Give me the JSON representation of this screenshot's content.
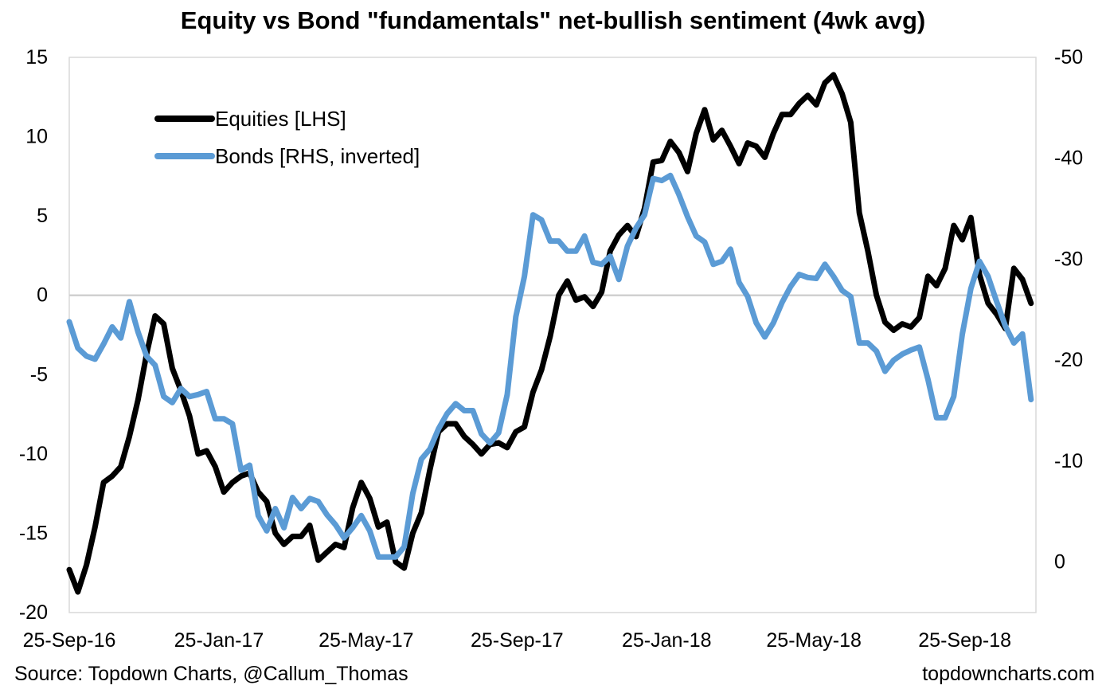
{
  "chart_data": {
    "type": "line",
    "title": "Equity vs Bond \"fundamentals\" net-bullish sentiment (4wk avg)",
    "x_tick_labels": [
      "25-Sep-16",
      "25-Jan-17",
      "25-May-17",
      "25-Sep-17",
      "25-Jan-18",
      "25-May-18",
      "25-Sep-18"
    ],
    "x_range": [
      "2016-09-25",
      "2018-11-22"
    ],
    "y_left": {
      "ylim": [
        -20,
        15
      ],
      "ticks": [
        15,
        10,
        5,
        0,
        -5,
        -10,
        -15,
        -20
      ]
    },
    "y_right": {
      "ylim": [
        5,
        -50
      ],
      "inverted": true,
      "ticks": [
        -50,
        -40,
        -30,
        -20,
        -10,
        0
      ]
    },
    "zero_line": 0,
    "legend_position": "top-left",
    "series": [
      {
        "name": "Equities [LHS]",
        "axis": "left",
        "color": "#000000",
        "points": [
          [
            "2016-09-25",
            -17.3
          ],
          [
            "2016-10-02",
            -18.7
          ],
          [
            "2016-10-09",
            -17.0
          ],
          [
            "2016-10-16",
            -14.6
          ],
          [
            "2016-10-23",
            -11.8
          ],
          [
            "2016-10-30",
            -11.4
          ],
          [
            "2016-11-06",
            -10.8
          ],
          [
            "2016-11-13",
            -8.9
          ],
          [
            "2016-11-20",
            -6.6
          ],
          [
            "2016-11-27",
            -3.7
          ],
          [
            "2016-12-04",
            -1.3
          ],
          [
            "2016-12-11",
            -1.8
          ],
          [
            "2016-12-18",
            -4.6
          ],
          [
            "2016-12-25",
            -6.0
          ],
          [
            "2017-01-01",
            -7.6
          ],
          [
            "2017-01-08",
            -10.0
          ],
          [
            "2017-01-15",
            -9.8
          ],
          [
            "2017-01-22",
            -10.8
          ],
          [
            "2017-01-29",
            -12.4
          ],
          [
            "2017-02-05",
            -11.8
          ],
          [
            "2017-02-12",
            -11.4
          ],
          [
            "2017-02-19",
            -11.2
          ],
          [
            "2017-02-26",
            -12.4
          ],
          [
            "2017-03-05",
            -13.0
          ],
          [
            "2017-03-12",
            -15.0
          ],
          [
            "2017-03-19",
            -15.7
          ],
          [
            "2017-03-26",
            -15.2
          ],
          [
            "2017-04-02",
            -15.2
          ],
          [
            "2017-04-09",
            -14.5
          ],
          [
            "2017-04-16",
            -16.7
          ],
          [
            "2017-04-23",
            -16.2
          ],
          [
            "2017-04-30",
            -15.7
          ],
          [
            "2017-05-07",
            -15.9
          ],
          [
            "2017-05-14",
            -13.4
          ],
          [
            "2017-05-21",
            -11.8
          ],
          [
            "2017-05-28",
            -12.8
          ],
          [
            "2017-06-04",
            -14.6
          ],
          [
            "2017-06-11",
            -14.3
          ],
          [
            "2017-06-18",
            -16.8
          ],
          [
            "2017-06-25",
            -17.2
          ],
          [
            "2017-07-02",
            -15.0
          ],
          [
            "2017-07-09",
            -13.7
          ],
          [
            "2017-07-16",
            -11.0
          ],
          [
            "2017-07-23",
            -8.6
          ],
          [
            "2017-07-30",
            -8.1
          ],
          [
            "2017-08-06",
            -8.1
          ],
          [
            "2017-08-13",
            -8.9
          ],
          [
            "2017-08-20",
            -9.4
          ],
          [
            "2017-08-27",
            -10.0
          ],
          [
            "2017-09-03",
            -9.4
          ],
          [
            "2017-09-10",
            -9.3
          ],
          [
            "2017-09-17",
            -9.6
          ],
          [
            "2017-09-24",
            -8.6
          ],
          [
            "2017-10-01",
            -8.3
          ],
          [
            "2017-10-08",
            -6.1
          ],
          [
            "2017-10-15",
            -4.7
          ],
          [
            "2017-10-22",
            -2.6
          ],
          [
            "2017-10-29",
            0.0
          ],
          [
            "2017-11-05",
            0.9
          ],
          [
            "2017-11-12",
            -0.3
          ],
          [
            "2017-11-19",
            -0.1
          ],
          [
            "2017-11-26",
            -0.7
          ],
          [
            "2017-12-03",
            0.2
          ],
          [
            "2017-12-10",
            2.8
          ],
          [
            "2017-12-17",
            3.8
          ],
          [
            "2017-12-24",
            4.4
          ],
          [
            "2017-12-31",
            3.7
          ],
          [
            "2018-01-07",
            5.5
          ],
          [
            "2018-01-14",
            8.4
          ],
          [
            "2018-01-21",
            8.5
          ],
          [
            "2018-01-28",
            9.7
          ],
          [
            "2018-02-04",
            9.0
          ],
          [
            "2018-02-11",
            7.8
          ],
          [
            "2018-02-18",
            10.2
          ],
          [
            "2018-02-25",
            11.7
          ],
          [
            "2018-03-04",
            9.8
          ],
          [
            "2018-03-11",
            10.4
          ],
          [
            "2018-03-18",
            9.4
          ],
          [
            "2018-03-25",
            8.3
          ],
          [
            "2018-04-01",
            9.6
          ],
          [
            "2018-04-08",
            9.4
          ],
          [
            "2018-04-15",
            8.7
          ],
          [
            "2018-04-22",
            10.2
          ],
          [
            "2018-04-29",
            11.4
          ],
          [
            "2018-05-06",
            11.4
          ],
          [
            "2018-05-13",
            12.1
          ],
          [
            "2018-05-20",
            12.6
          ],
          [
            "2018-05-27",
            12.0
          ],
          [
            "2018-06-03",
            13.4
          ],
          [
            "2018-06-10",
            13.9
          ],
          [
            "2018-06-17",
            12.7
          ],
          [
            "2018-06-24",
            10.9
          ],
          [
            "2018-07-01",
            5.2
          ],
          [
            "2018-07-08",
            2.8
          ],
          [
            "2018-07-15",
            0.0
          ],
          [
            "2018-07-22",
            -1.7
          ],
          [
            "2018-07-29",
            -2.2
          ],
          [
            "2018-08-05",
            -1.8
          ],
          [
            "2018-08-12",
            -2.0
          ],
          [
            "2018-08-19",
            -1.4
          ],
          [
            "2018-08-26",
            1.2
          ],
          [
            "2018-09-02",
            0.6
          ],
          [
            "2018-09-09",
            1.7
          ],
          [
            "2018-09-16",
            4.4
          ],
          [
            "2018-09-23",
            3.5
          ],
          [
            "2018-09-30",
            4.9
          ],
          [
            "2018-10-07",
            1.3
          ],
          [
            "2018-10-14",
            -0.5
          ],
          [
            "2018-10-21",
            -1.2
          ],
          [
            "2018-10-28",
            -2.1
          ],
          [
            "2018-11-04",
            1.7
          ],
          [
            "2018-11-11",
            1.0
          ],
          [
            "2018-11-18",
            -0.5
          ]
        ]
      },
      {
        "name": "Bonds [RHS, inverted]",
        "axis": "right",
        "color": "#5b9bd5",
        "points": [
          [
            "2016-09-25",
            -23.8
          ],
          [
            "2016-10-02",
            -21.2
          ],
          [
            "2016-10-09",
            -20.4
          ],
          [
            "2016-10-16",
            -20.1
          ],
          [
            "2016-10-23",
            -21.6
          ],
          [
            "2016-10-30",
            -23.3
          ],
          [
            "2016-11-06",
            -22.2
          ],
          [
            "2016-11-13",
            -25.8
          ],
          [
            "2016-11-20",
            -22.8
          ],
          [
            "2016-11-27",
            -20.4
          ],
          [
            "2016-12-04",
            -19.5
          ],
          [
            "2016-12-11",
            -16.4
          ],
          [
            "2016-12-18",
            -15.8
          ],
          [
            "2016-12-25",
            -17.2
          ],
          [
            "2017-01-01",
            -16.4
          ],
          [
            "2017-01-08",
            -16.6
          ],
          [
            "2017-01-15",
            -16.9
          ],
          [
            "2017-01-22",
            -14.2
          ],
          [
            "2017-01-29",
            -14.2
          ],
          [
            "2017-02-05",
            -13.7
          ],
          [
            "2017-02-12",
            -9.1
          ],
          [
            "2017-02-19",
            -9.6
          ],
          [
            "2017-02-26",
            -4.6
          ],
          [
            "2017-03-05",
            -3.1
          ],
          [
            "2017-03-12",
            -5.3
          ],
          [
            "2017-03-19",
            -3.4
          ],
          [
            "2017-03-26",
            -6.4
          ],
          [
            "2017-04-02",
            -5.3
          ],
          [
            "2017-04-09",
            -6.3
          ],
          [
            "2017-04-16",
            -6.0
          ],
          [
            "2017-04-23",
            -4.7
          ],
          [
            "2017-04-30",
            -3.7
          ],
          [
            "2017-05-07",
            -2.4
          ],
          [
            "2017-05-14",
            -3.4
          ],
          [
            "2017-05-21",
            -4.6
          ],
          [
            "2017-05-28",
            -3.1
          ],
          [
            "2017-06-04",
            -0.5
          ],
          [
            "2017-06-11",
            -0.5
          ],
          [
            "2017-06-18",
            -0.5
          ],
          [
            "2017-06-25",
            -1.5
          ],
          [
            "2017-07-02",
            -6.8
          ],
          [
            "2017-07-09",
            -10.2
          ],
          [
            "2017-07-16",
            -11.2
          ],
          [
            "2017-07-23",
            -13.2
          ],
          [
            "2017-07-30",
            -14.7
          ],
          [
            "2017-08-06",
            -15.7
          ],
          [
            "2017-08-13",
            -15.0
          ],
          [
            "2017-08-20",
            -15.0
          ],
          [
            "2017-08-27",
            -12.7
          ],
          [
            "2017-09-03",
            -11.8
          ],
          [
            "2017-09-10",
            -12.8
          ],
          [
            "2017-09-17",
            -16.6
          ],
          [
            "2017-09-24",
            -24.3
          ],
          [
            "2017-10-01",
            -28.3
          ],
          [
            "2017-10-08",
            -34.4
          ],
          [
            "2017-10-15",
            -33.9
          ],
          [
            "2017-10-22",
            -31.8
          ],
          [
            "2017-10-29",
            -31.8
          ],
          [
            "2017-11-05",
            -30.8
          ],
          [
            "2017-11-12",
            -30.8
          ],
          [
            "2017-11-19",
            -32.3
          ],
          [
            "2017-11-26",
            -29.7
          ],
          [
            "2017-12-03",
            -29.5
          ],
          [
            "2017-12-10",
            -30.3
          ],
          [
            "2017-12-17",
            -28.0
          ],
          [
            "2017-12-24",
            -31.3
          ],
          [
            "2017-12-31",
            -33.1
          ],
          [
            "2018-01-07",
            -34.4
          ],
          [
            "2018-01-14",
            -38.0
          ],
          [
            "2018-01-21",
            -37.8
          ],
          [
            "2018-01-28",
            -38.3
          ],
          [
            "2018-02-04",
            -36.4
          ],
          [
            "2018-02-11",
            -34.2
          ],
          [
            "2018-02-18",
            -32.3
          ],
          [
            "2018-02-25",
            -31.7
          ],
          [
            "2018-03-04",
            -29.5
          ],
          [
            "2018-03-11",
            -29.8
          ],
          [
            "2018-03-18",
            -31.0
          ],
          [
            "2018-03-25",
            -27.7
          ],
          [
            "2018-04-01",
            -26.3
          ],
          [
            "2018-04-08",
            -23.7
          ],
          [
            "2018-04-15",
            -22.3
          ],
          [
            "2018-04-22",
            -23.7
          ],
          [
            "2018-04-29",
            -25.7
          ],
          [
            "2018-05-06",
            -27.3
          ],
          [
            "2018-05-13",
            -28.5
          ],
          [
            "2018-05-20",
            -28.2
          ],
          [
            "2018-05-27",
            -28.1
          ],
          [
            "2018-06-03",
            -29.5
          ],
          [
            "2018-06-10",
            -28.3
          ],
          [
            "2018-06-17",
            -26.9
          ],
          [
            "2018-06-24",
            -26.3
          ],
          [
            "2018-07-01",
            -21.7
          ],
          [
            "2018-07-08",
            -21.7
          ],
          [
            "2018-07-15",
            -20.9
          ],
          [
            "2018-07-22",
            -18.9
          ],
          [
            "2018-07-29",
            -20.0
          ],
          [
            "2018-08-05",
            -20.6
          ],
          [
            "2018-08-12",
            -21.0
          ],
          [
            "2018-08-19",
            -21.3
          ],
          [
            "2018-08-26",
            -18.1
          ],
          [
            "2018-09-02",
            -14.3
          ],
          [
            "2018-09-09",
            -14.3
          ],
          [
            "2018-09-16",
            -16.4
          ],
          [
            "2018-09-23",
            -22.6
          ],
          [
            "2018-09-30",
            -27.1
          ],
          [
            "2018-10-07",
            -29.8
          ],
          [
            "2018-10-14",
            -28.3
          ],
          [
            "2018-10-21",
            -25.8
          ],
          [
            "2018-10-28",
            -23.4
          ],
          [
            "2018-11-04",
            -21.7
          ],
          [
            "2018-11-11",
            -22.6
          ],
          [
            "2018-11-18",
            -16.1
          ]
        ]
      }
    ],
    "source": "Source: Topdown Charts, @Callum_Thomas",
    "site": "topdowncharts.com"
  }
}
